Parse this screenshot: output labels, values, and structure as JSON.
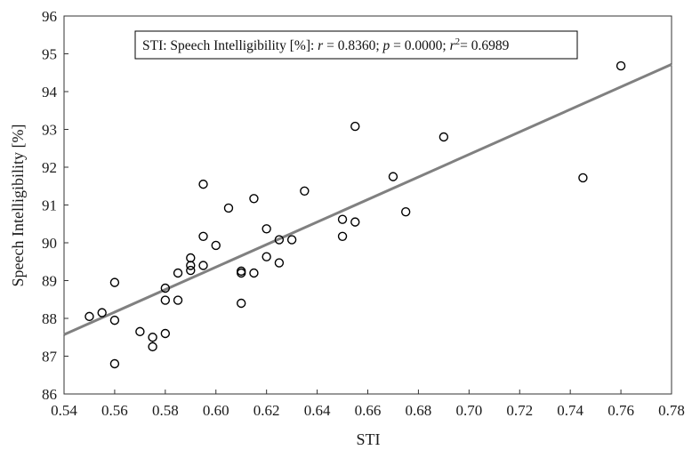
{
  "chart_data": {
    "type": "scatter",
    "xlabel": "STI",
    "ylabel": "Speech Intelligibility [%]",
    "xlim": [
      0.54,
      0.78
    ],
    "ylim": [
      86,
      96
    ],
    "xticks": [
      "0.54",
      "0.56",
      "0.58",
      "0.60",
      "0.62",
      "0.64",
      "0.66",
      "0.68",
      "0.70",
      "0.72",
      "0.74",
      "0.76",
      "0.78"
    ],
    "yticks": [
      "86",
      "87",
      "88",
      "89",
      "90",
      "91",
      "92",
      "93",
      "94",
      "95",
      "96"
    ],
    "annotation": {
      "prefix": "STI: Speech Intelligibility [%]: ",
      "r_sym": "r",
      "r_val": " = 0.8360; ",
      "p_sym": "p",
      "p_val": " = 0.0000; ",
      "r2_sym": "r",
      "r2_exp": "2",
      "r2_val": "= 0.6989"
    },
    "fit_line": {
      "x": [
        0.54,
        0.78
      ],
      "y": [
        87.57,
        94.72
      ]
    },
    "points": [
      {
        "x": 0.55,
        "y": 88.05
      },
      {
        "x": 0.555,
        "y": 88.15
      },
      {
        "x": 0.56,
        "y": 88.95
      },
      {
        "x": 0.56,
        "y": 87.95
      },
      {
        "x": 0.56,
        "y": 86.8
      },
      {
        "x": 0.57,
        "y": 87.65
      },
      {
        "x": 0.575,
        "y": 87.5
      },
      {
        "x": 0.575,
        "y": 87.25
      },
      {
        "x": 0.58,
        "y": 87.6
      },
      {
        "x": 0.58,
        "y": 88.8
      },
      {
        "x": 0.58,
        "y": 88.48
      },
      {
        "x": 0.585,
        "y": 88.48
      },
      {
        "x": 0.585,
        "y": 89.2
      },
      {
        "x": 0.59,
        "y": 89.6
      },
      {
        "x": 0.59,
        "y": 89.4
      },
      {
        "x": 0.59,
        "y": 89.27
      },
      {
        "x": 0.595,
        "y": 89.4
      },
      {
        "x": 0.595,
        "y": 90.17
      },
      {
        "x": 0.595,
        "y": 91.55
      },
      {
        "x": 0.6,
        "y": 89.93
      },
      {
        "x": 0.605,
        "y": 90.92
      },
      {
        "x": 0.61,
        "y": 89.25
      },
      {
        "x": 0.61,
        "y": 89.2
      },
      {
        "x": 0.61,
        "y": 88.4
      },
      {
        "x": 0.615,
        "y": 89.2
      },
      {
        "x": 0.615,
        "y": 91.17
      },
      {
        "x": 0.62,
        "y": 90.37
      },
      {
        "x": 0.62,
        "y": 89.63
      },
      {
        "x": 0.625,
        "y": 90.08
      },
      {
        "x": 0.625,
        "y": 89.47
      },
      {
        "x": 0.63,
        "y": 90.08
      },
      {
        "x": 0.635,
        "y": 91.37
      },
      {
        "x": 0.65,
        "y": 90.62
      },
      {
        "x": 0.65,
        "y": 90.17
      },
      {
        "x": 0.655,
        "y": 90.55
      },
      {
        "x": 0.655,
        "y": 93.08
      },
      {
        "x": 0.67,
        "y": 91.75
      },
      {
        "x": 0.675,
        "y": 90.82
      },
      {
        "x": 0.69,
        "y": 92.8
      },
      {
        "x": 0.745,
        "y": 91.72
      },
      {
        "x": 0.76,
        "y": 94.68
      }
    ]
  },
  "colors": {
    "line": "#808080",
    "marker": "#000000",
    "axis": "#333333"
  }
}
